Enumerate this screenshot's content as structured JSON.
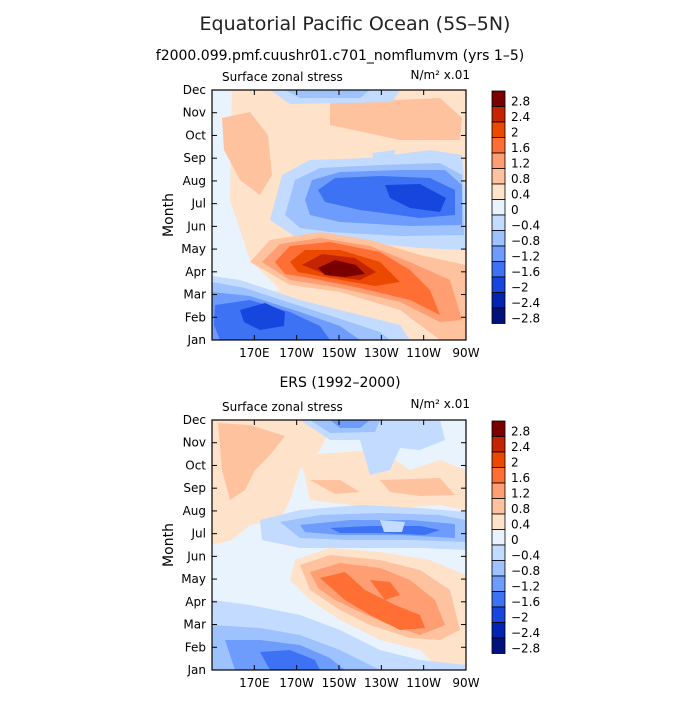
{
  "title": "Equatorial Pacific Ocean (5S–5N)",
  "colorbar_labels": [
    "2.8",
    "2.4",
    "2",
    "1.6",
    "1.2",
    "0.8",
    "0.4",
    "0",
    "−0.4",
    "−0.8",
    "−1.2",
    "−1.6",
    "−2",
    "−2.4",
    "−2.8"
  ],
  "colors": [
    "#7a0000",
    "#c42500",
    "#eb4800",
    "#ff6e33",
    "#ff9d73",
    "#ffc29e",
    "#ffe2ca",
    "#e8f3fe",
    "#c2dbfe",
    "#9ec2fd",
    "#6e9cfc",
    "#3d72f5",
    "#1646de",
    "#0224b2",
    "#03127a"
  ],
  "chart_data": [
    {
      "type": "heatmap",
      "title": "f2000.099.pmf.cuushr01.c701_nomflumvm (yrs 1–5)",
      "variable": "Surface zonal stress",
      "units": "N/m² x.01",
      "xlabel": "",
      "ylabel": "Month",
      "x_range": [
        "150E",
        "90W"
      ],
      "x_ticks": [
        "170E",
        "170W",
        "150W",
        "130W",
        "110W",
        "90W"
      ],
      "y_ticks": [
        "Jan",
        "Feb",
        "Mar",
        "Apr",
        "May",
        "Jun",
        "Jul",
        "Aug",
        "Sep",
        "Oct",
        "Nov",
        "Dec"
      ],
      "levels": [
        -2.8,
        -2.4,
        -2,
        -1.6,
        -1.2,
        -0.8,
        -0.4,
        0,
        0.4,
        0.8,
        1.2,
        1.6,
        2,
        2.4,
        2.8
      ],
      "features": [
        {
          "name": "positive maximum",
          "lon": "150W",
          "month": "Apr",
          "value": 2.9
        },
        {
          "name": "negative minimum",
          "lon": "110W",
          "month": "Jul",
          "value": -2.1
        },
        {
          "name": "negative minimum",
          "lon": "170E",
          "month": "Feb",
          "value": -2.1
        }
      ]
    },
    {
      "type": "heatmap",
      "title": "ERS (1992–2000)",
      "variable": "Surface zonal stress",
      "units": "N/m² x.01",
      "xlabel": "",
      "ylabel": "Month",
      "x_range": [
        "150E",
        "90W"
      ],
      "x_ticks": [
        "170E",
        "170W",
        "150W",
        "130W",
        "110W",
        "90W"
      ],
      "y_ticks": [
        "Jan",
        "Feb",
        "Mar",
        "Apr",
        "May",
        "Jun",
        "Jul",
        "Aug",
        "Sep",
        "Oct",
        "Nov",
        "Dec"
      ],
      "levels": [
        -2.8,
        -2.4,
        -2,
        -1.6,
        -1.2,
        -0.8,
        -0.4,
        0,
        0.4,
        0.8,
        1.2,
        1.6,
        2,
        2.4,
        2.8
      ],
      "features": [
        {
          "name": "positive maximum",
          "lon": "130W",
          "month": "Mar",
          "value": 1.8
        },
        {
          "name": "negative minimum",
          "lon": "130W",
          "month": "Jul",
          "value": -1.4
        },
        {
          "name": "negative minimum",
          "lon": "160W",
          "month": "Jan",
          "value": -1.3
        }
      ]
    }
  ]
}
